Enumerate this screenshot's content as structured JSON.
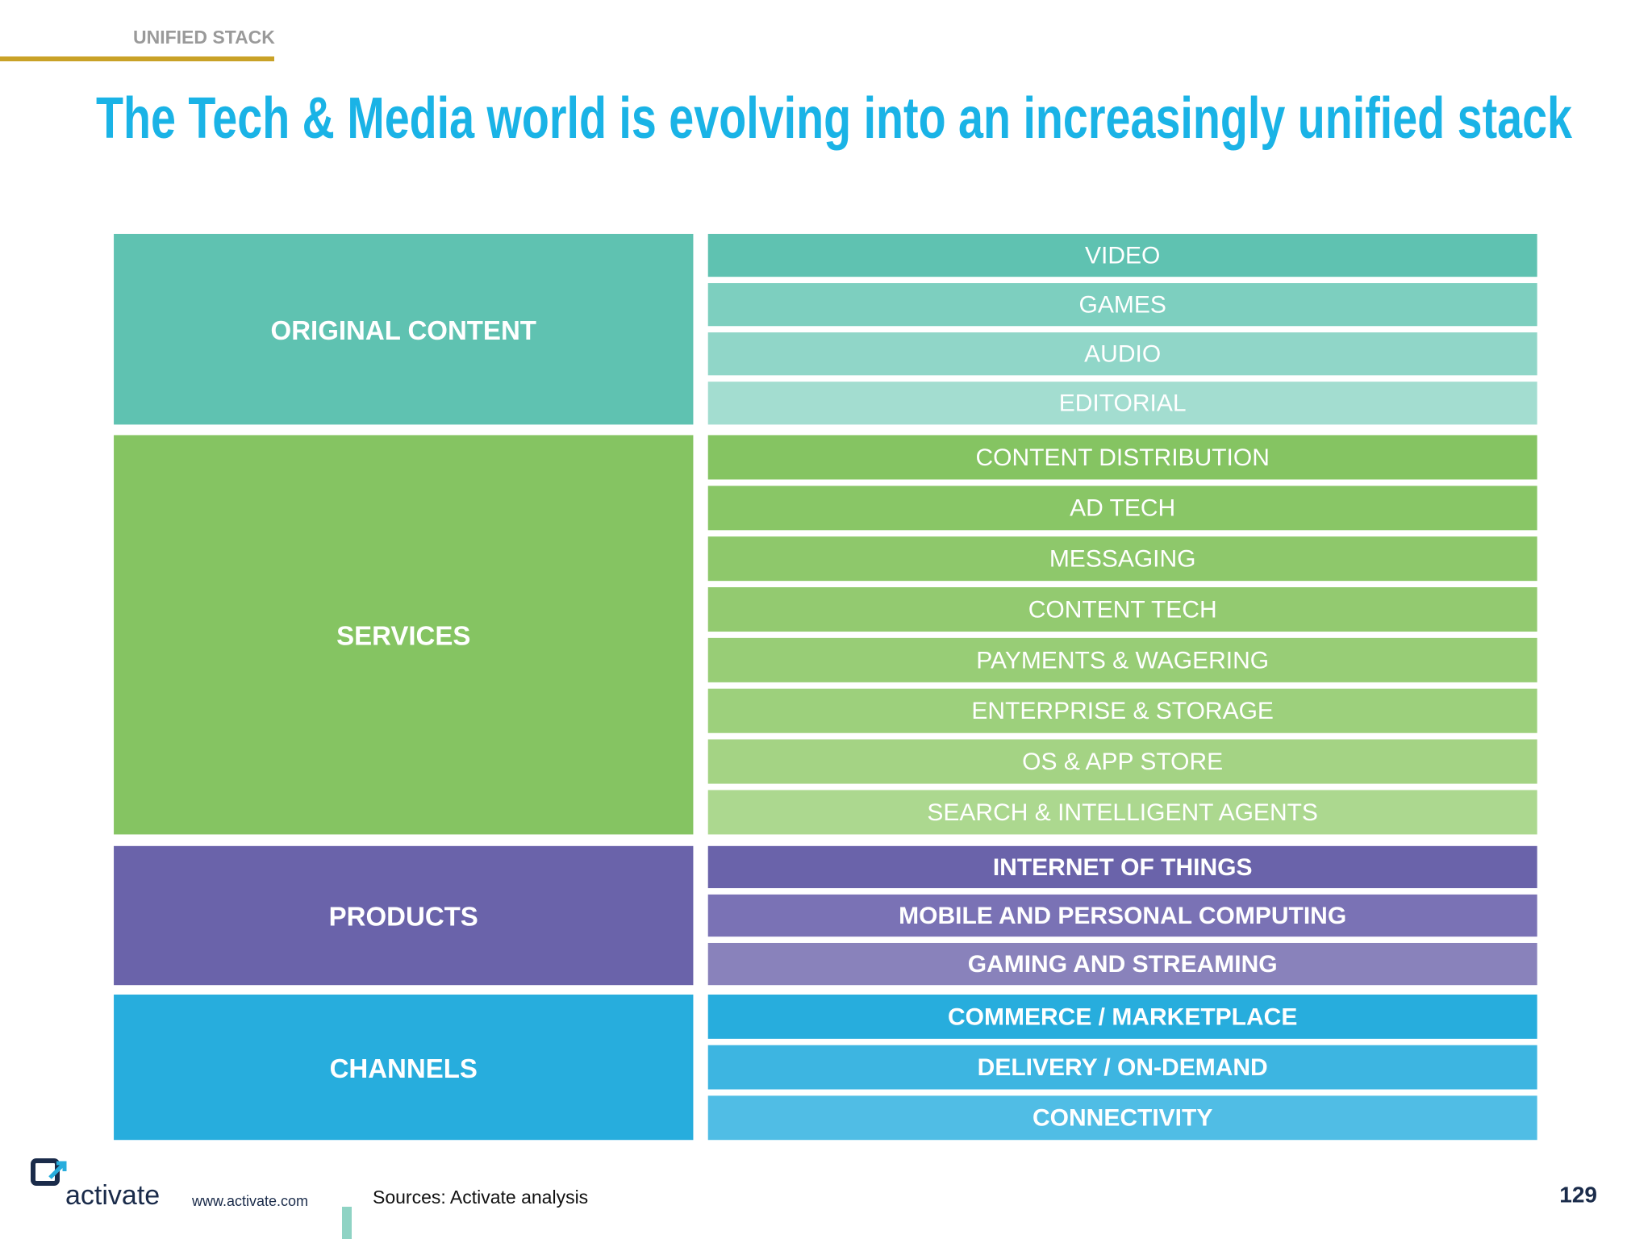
{
  "header": {
    "section": "UNIFIED STACK",
    "title": "The Tech & Media world is evolving into an increasingly unified stack"
  },
  "groups": [
    {
      "label": "ORIGINAL CONTENT",
      "items": [
        "VIDEO",
        "GAMES",
        "AUDIO",
        "EDITORIAL"
      ]
    },
    {
      "label": "SERVICES",
      "items": [
        "CONTENT DISTRIBUTION",
        "AD TECH",
        "MESSAGING",
        "CONTENT TECH",
        "PAYMENTS & WAGERING",
        "ENTERPRISE & STORAGE",
        "OS & APP STORE",
        "SEARCH & INTELLIGENT AGENTS"
      ]
    },
    {
      "label": "PRODUCTS",
      "items": [
        "INTERNET OF THINGS",
        "MOBILE AND PERSONAL COMPUTING",
        "GAMING AND STREAMING"
      ]
    },
    {
      "label": "CHANNELS",
      "items": [
        "COMMERCE / MARKETPLACE",
        "DELIVERY / ON-DEMAND",
        "CONNECTIVITY"
      ]
    }
  ],
  "footer": {
    "brand": "activate",
    "url": "www.activate.com",
    "source": "Sources: Activate analysis",
    "page": "129"
  }
}
